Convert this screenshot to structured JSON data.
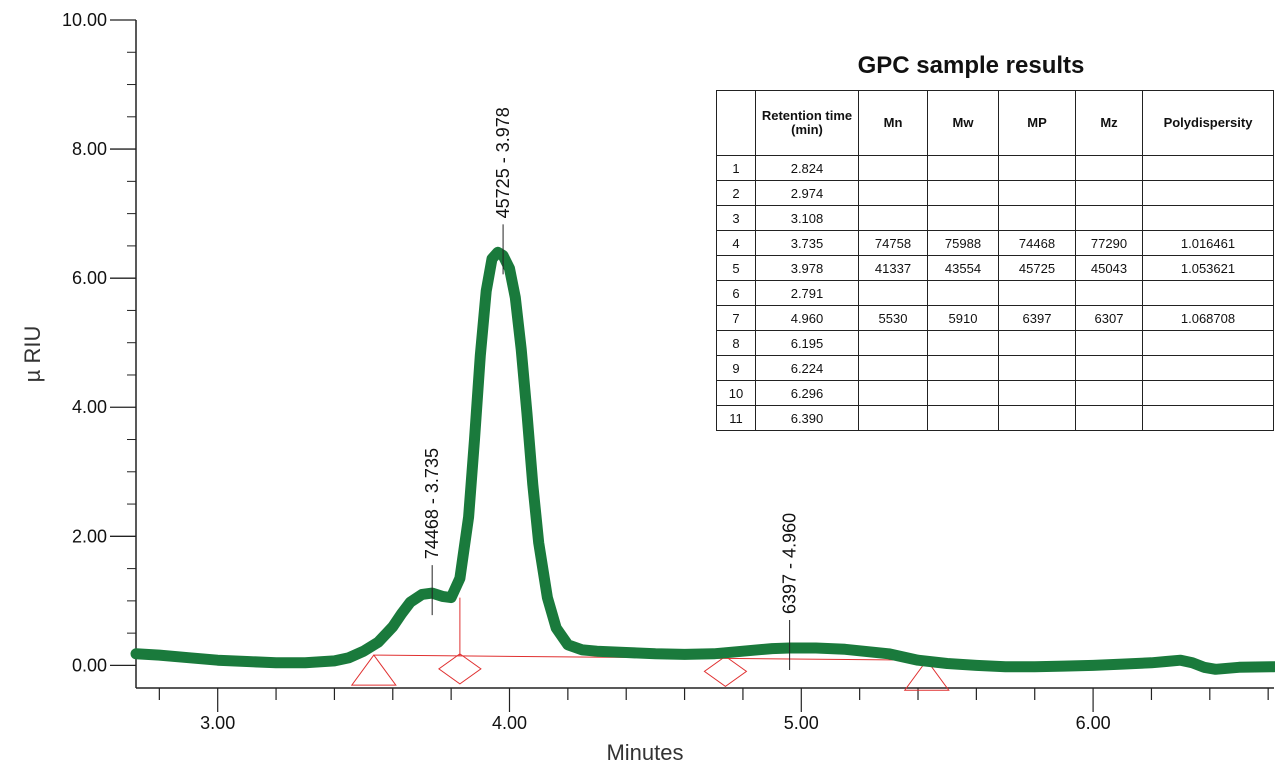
{
  "chart_data": {
    "type": "line",
    "xlabel": "Minutes",
    "ylabel": "µ RIU",
    "xlim": [
      2.72,
      6.62
    ],
    "ylim": [
      -0.35,
      10.0
    ],
    "x_ticks": [
      "3.00",
      "4.00",
      "5.00",
      "6.00"
    ],
    "y_ticks": [
      "0.00",
      "2.00",
      "4.00",
      "6.00",
      "8.00",
      "10.00"
    ],
    "grid": false,
    "series": [
      {
        "color": "#1a7a3c",
        "x": [
          2.72,
          2.8,
          2.9,
          3.0,
          3.1,
          3.2,
          3.3,
          3.4,
          3.45,
          3.5,
          3.55,
          3.6,
          3.63,
          3.66,
          3.7,
          3.735,
          3.77,
          3.8,
          3.83,
          3.86,
          3.88,
          3.9,
          3.92,
          3.94,
          3.96,
          3.978,
          4.0,
          4.02,
          4.04,
          4.06,
          4.08,
          4.1,
          4.13,
          4.16,
          4.2,
          4.25,
          4.3,
          4.4,
          4.5,
          4.6,
          4.7,
          4.8,
          4.9,
          4.96,
          5.05,
          5.15,
          5.3,
          5.4,
          5.5,
          5.6,
          5.7,
          5.8,
          5.9,
          6.0,
          6.1,
          6.2,
          6.25,
          6.3,
          6.34,
          6.38,
          6.42,
          6.5,
          6.62
        ],
        "y": [
          0.18,
          0.16,
          0.12,
          0.08,
          0.06,
          0.04,
          0.04,
          0.07,
          0.12,
          0.22,
          0.36,
          0.6,
          0.8,
          0.98,
          1.1,
          1.12,
          1.07,
          1.05,
          1.35,
          2.3,
          3.5,
          4.8,
          5.8,
          6.3,
          6.4,
          6.35,
          6.15,
          5.7,
          4.9,
          3.9,
          2.8,
          1.9,
          1.05,
          0.58,
          0.32,
          0.24,
          0.22,
          0.2,
          0.18,
          0.17,
          0.18,
          0.22,
          0.26,
          0.27,
          0.27,
          0.25,
          0.18,
          0.08,
          0.03,
          0.0,
          -0.02,
          -0.02,
          -0.01,
          0.0,
          0.02,
          0.04,
          0.06,
          0.08,
          0.04,
          -0.03,
          -0.06,
          -0.03,
          -0.02
        ]
      }
    ],
    "peak_labels": [
      {
        "text": "74468 - 3.735",
        "x": 3.735,
        "y": 1.12
      },
      {
        "text": "45725 - 3.978",
        "x": 3.978,
        "y": 6.4
      },
      {
        "text": "6397 - 4.960",
        "x": 4.96,
        "y": 0.27
      }
    ],
    "baseline_marks": {
      "color": "#e03030",
      "triangles": [
        3.535,
        5.43
      ],
      "diamonds": [
        3.83,
        4.74
      ],
      "baseline_y": [
        0.16,
        0.08
      ]
    },
    "table": {
      "title": "GPC sample results",
      "columns": [
        "",
        "Retention time (min)",
        "Mn",
        "Mw",
        "MP",
        "Mz",
        "Polydispersity"
      ],
      "rows": [
        [
          "1",
          "2.824",
          "",
          "",
          "",
          "",
          ""
        ],
        [
          "2",
          "2.974",
          "",
          "",
          "",
          "",
          ""
        ],
        [
          "3",
          "3.108",
          "",
          "",
          "",
          "",
          ""
        ],
        [
          "4",
          "3.735",
          "74758",
          "75988",
          "74468",
          "77290",
          "1.016461"
        ],
        [
          "5",
          "3.978",
          "41337",
          "43554",
          "45725",
          "45043",
          "1.053621"
        ],
        [
          "6",
          "2.791",
          "",
          "",
          "",
          "",
          ""
        ],
        [
          "7",
          "4.960",
          "5530",
          "5910",
          "6397",
          "6307",
          "1.068708"
        ],
        [
          "8",
          "6.195",
          "",
          "",
          "",
          "",
          ""
        ],
        [
          "9",
          "6.224",
          "",
          "",
          "",
          "",
          ""
        ],
        [
          "10",
          "6.296",
          "",
          "",
          "",
          "",
          ""
        ],
        [
          "11",
          "6.390",
          "",
          "",
          "",
          "",
          ""
        ]
      ]
    }
  }
}
